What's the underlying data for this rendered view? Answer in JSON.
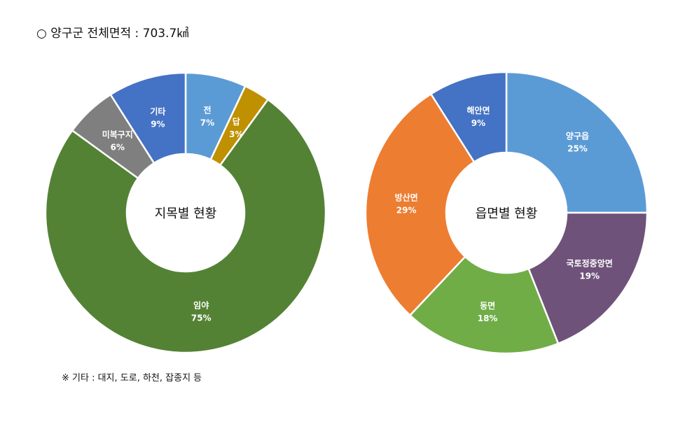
{
  "header": {
    "title": "○ 양구군 전체면적 : 703.7㎢"
  },
  "footnote": {
    "text": "※ 기타 : 대지, 도로, 하천, 잡종지 등"
  },
  "chart_data": [
    {
      "type": "pie",
      "title": "지목별 현황",
      "categories": [
        "전",
        "답",
        "임야",
        "미복구지",
        "기타"
      ],
      "values": [
        7,
        3,
        75,
        6,
        9
      ],
      "value_labels": [
        "7%",
        "3%",
        "75%",
        "6%",
        "9%"
      ],
      "colors": [
        "#5B9BD5",
        "#BF9000",
        "#548235",
        "#7F7F7F",
        "#4472C4"
      ],
      "donut": true
    },
    {
      "type": "pie",
      "title": "읍면별 현황",
      "categories": [
        "양구읍",
        "국토정중앙면",
        "동면",
        "방산면",
        "해안면"
      ],
      "values": [
        25,
        19,
        18,
        29,
        9
      ],
      "value_labels": [
        "25%",
        "19%",
        "18%",
        "29%",
        "9%"
      ],
      "colors": [
        "#5B9BD5",
        "#6F527A",
        "#70AD47",
        "#ED7D31",
        "#4472C4"
      ],
      "donut": true
    }
  ]
}
